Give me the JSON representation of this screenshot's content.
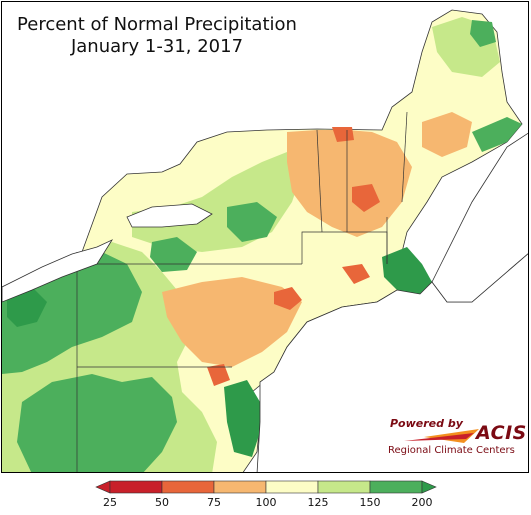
{
  "title": {
    "line1": "Percent of Normal Precipitation",
    "line2": "January 1-31, 2017"
  },
  "logo": {
    "powered_by": "Powered by",
    "name": "ACIS",
    "org": "Regional Climate Centers"
  },
  "legend": {
    "ticks": [
      "25",
      "50",
      "75",
      "100",
      "125",
      "150",
      "200"
    ],
    "colors": [
      "#c8202a",
      "#e8663a",
      "#f6b770",
      "#fdfdc6",
      "#c6e88a",
      "#4caf5c"
    ],
    "arrow_low_color": "#c8202a",
    "arrow_high_color": "#2e9a4a"
  },
  "colors": {
    "water": "#ffffff",
    "boundary": "#333333",
    "very_dry": "#e8663a",
    "dry": "#f6b770",
    "normal": "#fdfdc6",
    "wet": "#c6e88a",
    "very_wet": "#4caf5c",
    "extreme_wet": "#2e9a4a"
  }
}
